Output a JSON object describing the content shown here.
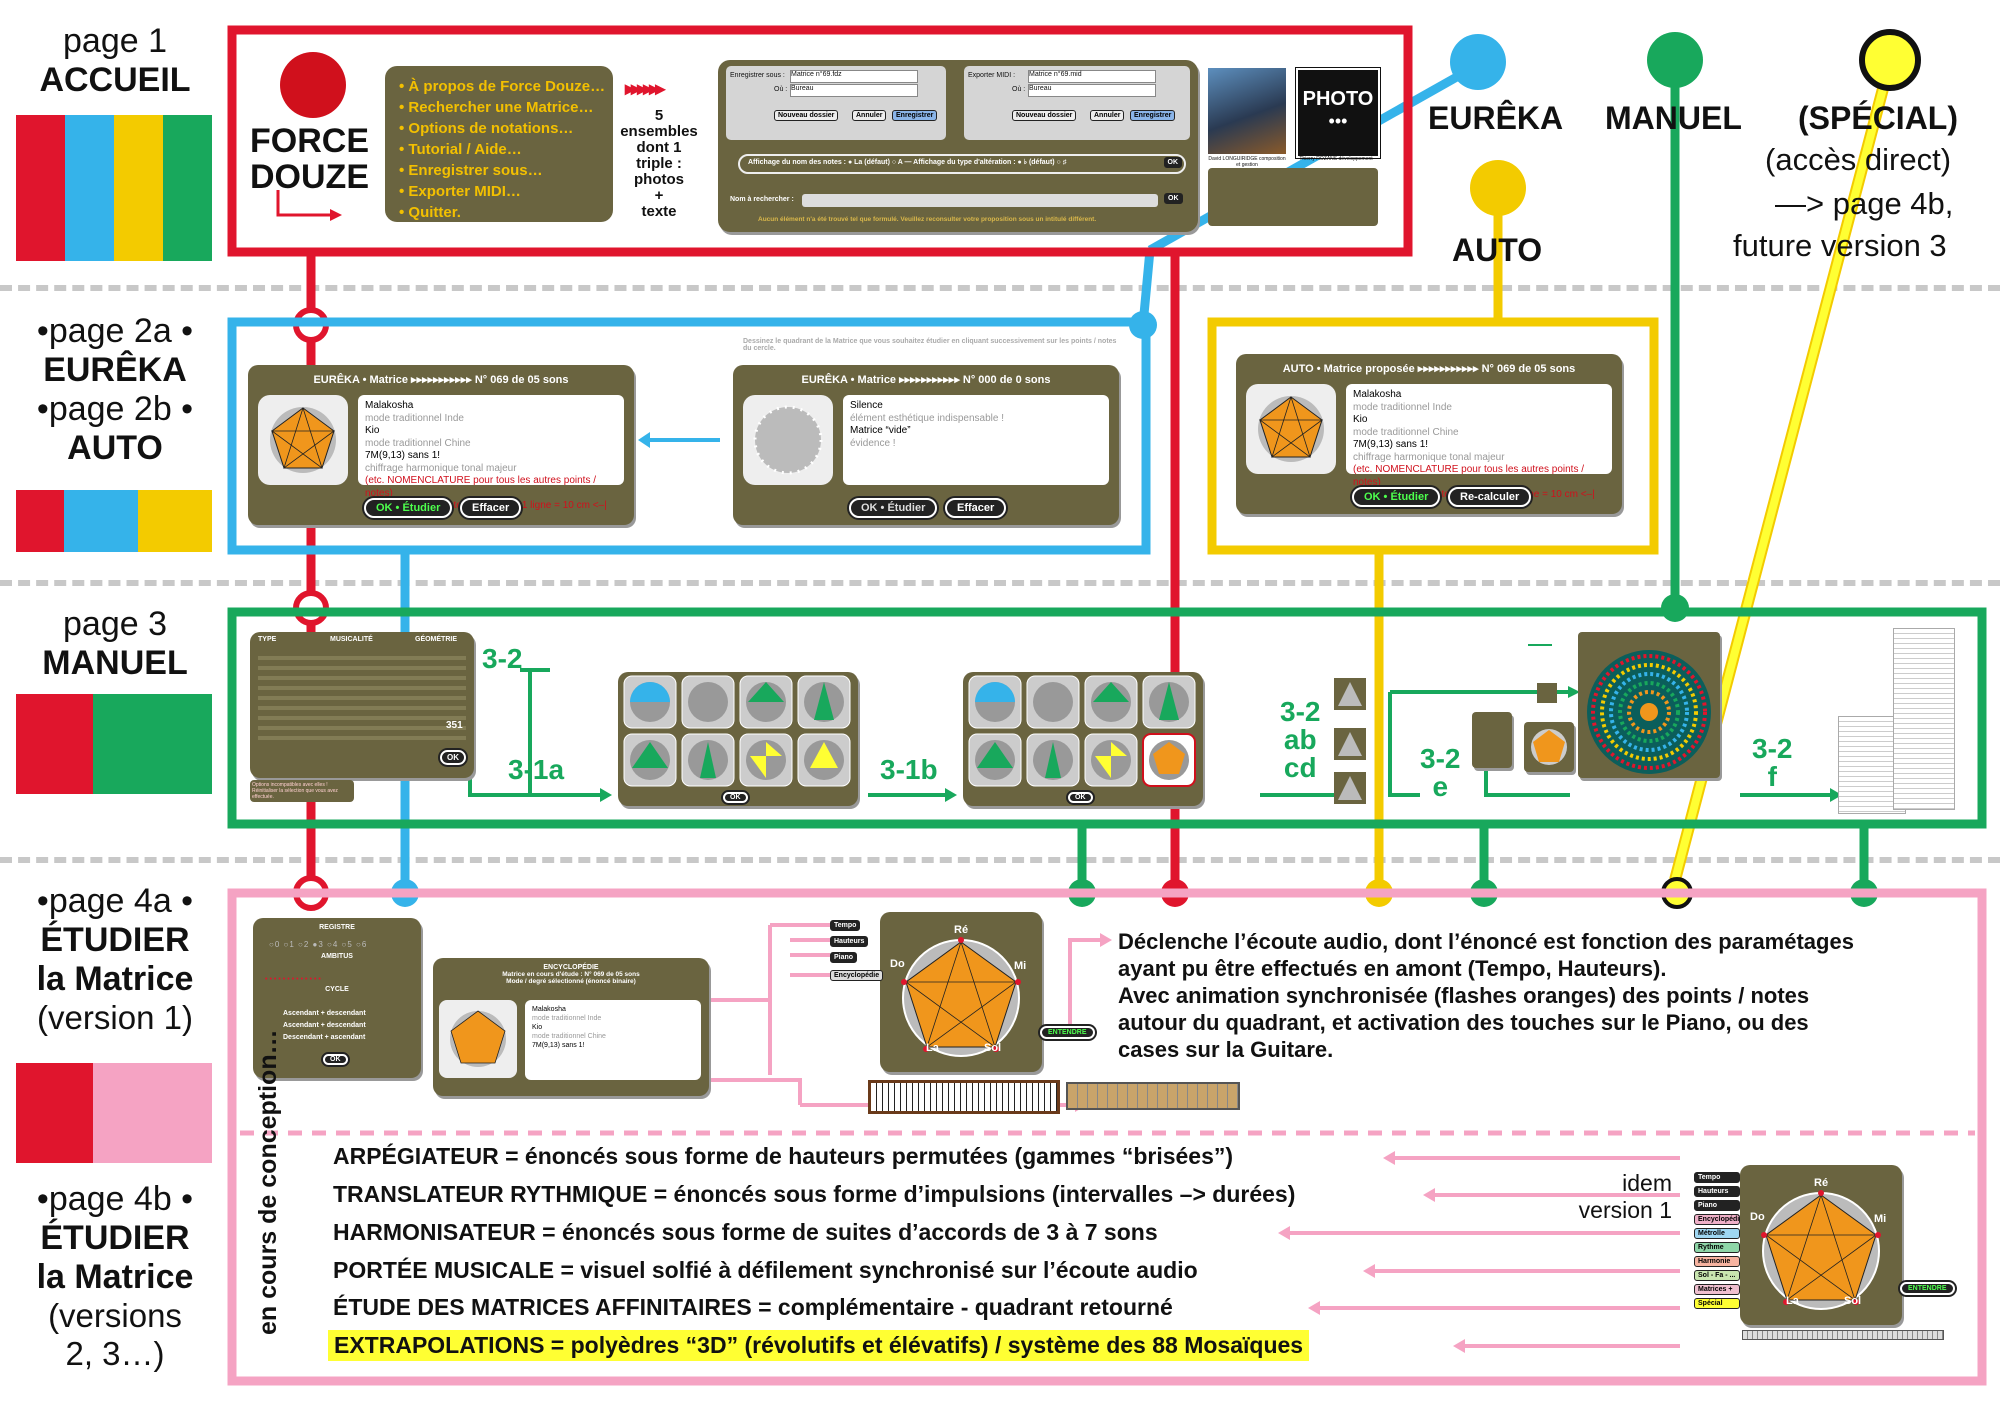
{
  "colors": {
    "red": "#e0152d",
    "blue": "#35b3ea",
    "yellow": "#f3cb00",
    "green": "#18a85c",
    "pink": "#f5a3c3",
    "olive": "#6a6440"
  },
  "left": {
    "p1": {
      "page": "page 1",
      "name": "ACCUEIL"
    },
    "p2": {
      "page_a": "•page 2a  •",
      "name_a": "EURÊKA",
      "page_b": "•page 2b  •",
      "name_b": "AUTO"
    },
    "p3": {
      "page": "page 3",
      "name": "MANUEL"
    },
    "p4a": {
      "page": "•page 4a  •",
      "l1": "ÉTUDIER",
      "l2": "la Matrice",
      "l3": "(version 1)"
    },
    "p4b": {
      "page": "•page 4b  •",
      "l1": "ÉTUDIER",
      "l2": "la Matrice",
      "l3": "(versions",
      "l4": "2, 3…)"
    }
  },
  "accueil": {
    "logo1": "FORCE",
    "logo2": "DOUZE",
    "menu": [
      "• À propos de Force Douze…",
      "• Rechercher une Matrice…",
      "• Options de notations…",
      "• Tutorial / Aide…",
      "• Enregistrer sous…",
      "• Exporter MIDI…",
      "• Quitter."
    ],
    "ensembles": [
      "5",
      "ensembles",
      "dont 1",
      "triple :",
      "photos",
      "+",
      "texte"
    ],
    "save_label": "Enregistrer sous :",
    "save_value": "Matrice n°69.fdz",
    "ou": "Où :",
    "folder": "Bureau",
    "btn_new": "Nouveau dossier",
    "btn_cancel": "Annuler",
    "btn_save": "Enregistrer",
    "export_label": "Exporter MIDI :",
    "export_value": "Matrice n°69.mid",
    "notes_option": "Affichage du nom des notes : ● La (défaut)  ○ A — Affichage du type d'altération : ● ♭ (défaut)  ○ ♯",
    "ok": "OK",
    "search_label": "Nom à rechercher :",
    "search_msg": "Aucun élément n'a été trouvé tel que formulé. Veuillez reconsulter votre proposition sous un intitulé différent.",
    "photo": "PHOTO",
    "photo_dots": "•••",
    "cap1": "David LONGUIRIDGE composition et gestion",
    "cap2": "Thierry ROZANS développement"
  },
  "tops": {
    "eureka": "EURÊKA",
    "manuel": "MANUEL",
    "special": "(SPÉCIAL)",
    "access": "(accès direct)",
    "arrow": "—> page 4b,",
    "future": "future version 3",
    "auto": "AUTO"
  },
  "eureka": {
    "title": "EURÊKA • Matrice ▸▸▸▸▸▸▸▸▸▸▸ N° 069 de 05 sons",
    "l1": "Malakosha",
    "l2": "mode traditionnel Inde",
    "l3": "Kio",
    "l4": "mode traditionnel Chine",
    "l5": "7M(9,13) sans 1!",
    "l6": "chiffrage harmonique tonal majeur",
    "l7": "(etc. NOMENCLATURE pour tous les autres points / notes)",
    "l8": "|–> largeur maxi du texte 14pts sur 1 ligne = 10 cm <–|",
    "btn_ok": "OK • Étudier",
    "btn_clear": "Effacer",
    "hint": "Dessinez le quadrant de la Matrice que vous souhaitez étudier en cliquant successivement sur les points / notes du cercle.",
    "title2": "EURÊKA • Matrice ▸▸▸▸▸▸▸▸▸▸▸ N° 000 de 0 sons",
    "s1": "Silence",
    "s2": "élément esthétique indispensable !",
    "s3": "Matrice “vide”",
    "s4": "évidence !"
  },
  "auto": {
    "title": "AUTO • Matrice proposée ▸▸▸▸▸▸▸▸▸▸▸ N° 069 de 05 sons",
    "btn_ok": "OK • Étudier",
    "btn_recalc": "Re-calculer"
  },
  "manuel": {
    "h_type": "TYPE",
    "h_music": "MUSICALITÉ",
    "h_geo": "GÉOMÉTRIE",
    "c32": "3-2",
    "c31a": "3-1a",
    "c31b": "3-1b",
    "c32abcd_1": "3-2",
    "c32abcd_2": "ab",
    "c32abcd_3": "cd",
    "c32e_1": "3-2",
    "c32e_2": "e",
    "c32f_1": "3-2",
    "c32f_2": "f",
    "count": "351",
    "ok": "OK",
    "warn": "Options incompatibles avec elles ! Réinitialiser la sélection que vous avez effectuée."
  },
  "etudier": {
    "registre": "REGISTRE",
    "ambitus": "AMBITUS",
    "cycle": "CYCLE",
    "cycle_opts": [
      "Ascendant + descendant",
      "Ascendant + descendant",
      "Descendant + ascendant"
    ],
    "encyclo": "ENCYCLOPÉDIE",
    "matrice_line": "Matrice en cours d'étude : N° 069 de 05 sons",
    "mode_line": "Mode / degré sélectionné (énoncé binaire)",
    "tabs": [
      "Tempo",
      "Hauteurs",
      "Piano",
      "Encyclopédie"
    ],
    "notes": {
      "re": "Ré",
      "do": "Do",
      "mi": "Mi",
      "la": "La",
      "sol": "Sol"
    },
    "entendre": "ENTENDRE",
    "desc1": "Déclenche l’écoute audio, dont l’énoncé est fonction des paramétages",
    "desc2": "ayant pu être effectués en amont (Tempo, Hauteurs).",
    "desc3": "Avec animation synchronisée (flashes oranges) des points / notes",
    "desc4": "autour du quadrant, et activation  des touches sur le Piano, ou des",
    "desc5": "cases sur la Guitare."
  },
  "v2": {
    "side": "en cours de conception…",
    "items": [
      "ARPÉGIATEUR = énoncés sous forme de hauteurs permutées (gammes “brisées”)",
      "TRANSLATEUR RYTHMIQUE = énoncés sous forme d’impulsions (intervalles –> durées)",
      "HARMONISATEUR = énoncés sous forme de suites d’accords de 3 à 7 sons",
      "PORTÉE MUSICALE  = visuel solfié à défilement synchronisé sur l’écoute audio",
      "ÉTUDE DES MATRICES AFFINITAIRES = complémentaire - quadrant retourné",
      "EXTRAPOLATIONS = polyèdres “3D” (révolutifs et élévatifs) / système des 88 Mosaïques"
    ],
    "idem1": "idem",
    "idem2": "version 1",
    "tabs": [
      "Tempo",
      "Hauteurs",
      "Piano",
      "Encyclopédie",
      "Métrolle",
      "Rythme",
      "Harmonie",
      "Sol - Fa - ...",
      "Matrices +",
      "Spécial"
    ]
  }
}
